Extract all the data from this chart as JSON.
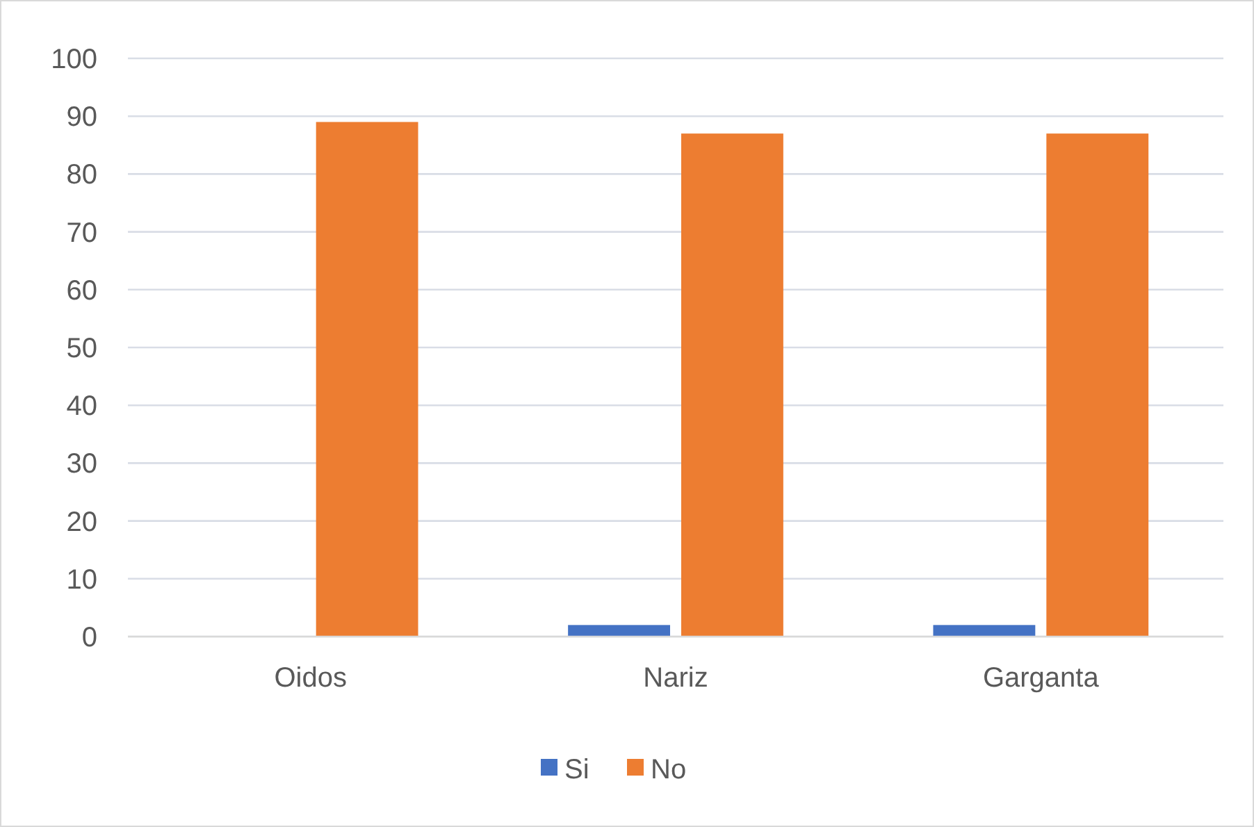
{
  "chart_data": {
    "type": "bar",
    "categories": [
      "Oidos",
      "Nariz",
      "Garganta"
    ],
    "series": [
      {
        "name": "Si",
        "color": "#4472c4",
        "values": [
          0,
          2,
          2
        ]
      },
      {
        "name": "No",
        "color": "#ed7d31",
        "values": [
          89,
          87,
          87
        ]
      }
    ],
    "ylim": [
      0,
      100
    ],
    "yticks": [
      0,
      10,
      20,
      30,
      40,
      50,
      60,
      70,
      80,
      90,
      100
    ],
    "grid": "y",
    "legend": "bottom"
  }
}
